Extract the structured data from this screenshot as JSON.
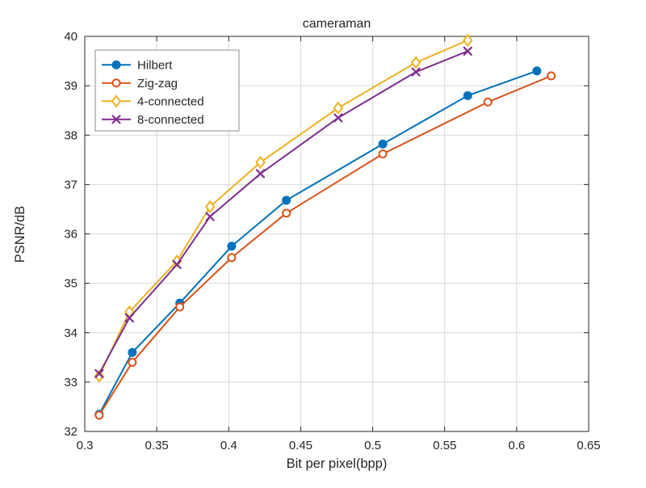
{
  "chart_data": {
    "type": "line",
    "title": "cameraman",
    "xlabel": "Bit per pixel(bpp)",
    "ylabel": "PSNR/dB",
    "xlim": [
      0.3,
      0.65
    ],
    "ylim": [
      32,
      40
    ],
    "xticks": [
      0.3,
      0.35,
      0.4,
      0.45,
      0.5,
      0.55,
      0.6,
      0.65
    ],
    "xtick_labels": [
      "0.3",
      "0.35",
      "0.4",
      "0.45",
      "0.5",
      "0.55",
      "0.6",
      "0.65"
    ],
    "yticks": [
      32,
      33,
      34,
      35,
      36,
      37,
      38,
      39,
      40
    ],
    "ytick_labels": [
      "32",
      "33",
      "34",
      "35",
      "36",
      "37",
      "38",
      "39",
      "40"
    ],
    "grid": true,
    "legend_position": "top-left",
    "series": [
      {
        "name": "Hilbert",
        "color": "#0072BD",
        "marker": "circle-filled",
        "x": [
          0.31,
          0.333,
          0.366,
          0.402,
          0.44,
          0.507,
          0.566,
          0.614
        ],
        "y": [
          32.35,
          33.6,
          34.6,
          35.75,
          36.68,
          37.82,
          38.8,
          39.3
        ]
      },
      {
        "name": "Zig-zag",
        "color": "#D95319",
        "marker": "circle-open",
        "x": [
          0.31,
          0.333,
          0.366,
          0.402,
          0.44,
          0.507,
          0.58,
          0.624
        ],
        "y": [
          32.33,
          33.4,
          34.52,
          35.52,
          36.42,
          37.62,
          38.67,
          39.2
        ]
      },
      {
        "name": "4-connected",
        "color": "#EDB120",
        "marker": "diamond-open",
        "x": [
          0.31,
          0.331,
          0.364,
          0.387,
          0.422,
          0.476,
          0.53,
          0.566
        ],
        "y": [
          33.12,
          34.42,
          35.45,
          36.55,
          37.45,
          38.55,
          39.47,
          39.92
        ]
      },
      {
        "name": "8-connected",
        "color": "#7E2F8E",
        "marker": "x",
        "x": [
          0.31,
          0.331,
          0.364,
          0.387,
          0.422,
          0.476,
          0.53,
          0.566
        ],
        "y": [
          33.17,
          34.3,
          35.38,
          36.35,
          37.22,
          38.35,
          39.28,
          39.7
        ]
      }
    ]
  }
}
